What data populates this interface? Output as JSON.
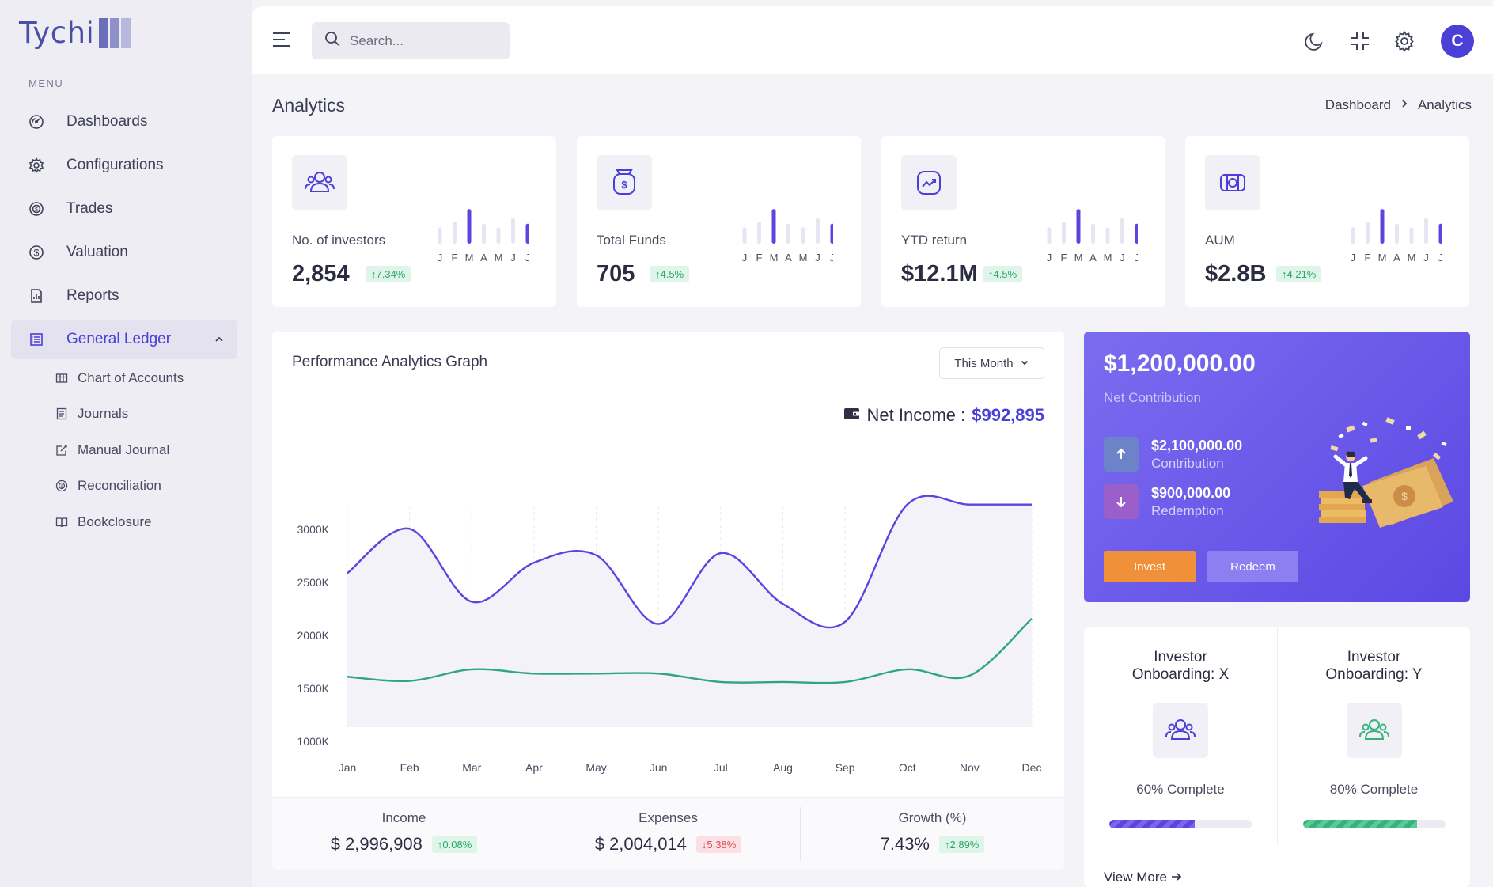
{
  "sidebar": {
    "logo": "Tychi",
    "menu_label": "MENU",
    "items": [
      {
        "label": "Dashboards",
        "icon": "gauge-icon"
      },
      {
        "label": "Configurations",
        "icon": "gear-icon"
      },
      {
        "label": "Trades",
        "icon": "coin-exchange-icon"
      },
      {
        "label": "Valuation",
        "icon": "dollar-circle-icon"
      },
      {
        "label": "Reports",
        "icon": "report-icon"
      },
      {
        "label": "General Ledger",
        "icon": "ledger-icon",
        "active": true,
        "expanded": true
      }
    ],
    "sub_items": [
      {
        "label": "Chart of Accounts",
        "icon": "table-icon"
      },
      {
        "label": "Journals",
        "icon": "journal-icon"
      },
      {
        "label": "Manual Journal",
        "icon": "edit-icon"
      },
      {
        "label": "Reconciliation",
        "icon": "reconcile-icon"
      },
      {
        "label": "Bookclosure",
        "icon": "book-icon"
      }
    ]
  },
  "topbar": {
    "search_placeholder": "Search...",
    "avatar_initial": "C"
  },
  "page": {
    "title": "Analytics",
    "breadcrumb": [
      "Dashboard",
      "Analytics"
    ]
  },
  "stats": [
    {
      "label": "No. of investors",
      "value": "2,854",
      "change": "7.34%",
      "icon": "users-icon"
    },
    {
      "label": "Total Funds",
      "value": "705",
      "change": "4.5%",
      "icon": "money-bag-icon"
    },
    {
      "label": "YTD return",
      "value": "$12.1M",
      "change": "4.5%",
      "icon": "trend-up-icon"
    },
    {
      "label": "AUM",
      "value": "$2.8B",
      "change": "4.21%",
      "icon": "cash-icon"
    }
  ],
  "mini_chart_months": [
    "J",
    "F",
    "M",
    "A",
    "M",
    "J",
    "J"
  ],
  "mini_chart_values": [
    0.45,
    0.6,
    0.95,
    0.55,
    0.45,
    0.7,
    0.55
  ],
  "performance": {
    "title": "Performance Analytics Graph",
    "period": "This Month",
    "net_income_label": "Net Income :",
    "net_income_value": "$992,895",
    "footer": [
      {
        "label": "Income",
        "value": "$ 2,996,908",
        "change": "0.08%",
        "dir": "up"
      },
      {
        "label": "Expenses",
        "value": "$ 2,004,014",
        "change": "5.38%",
        "dir": "down"
      },
      {
        "label": "Growth (%)",
        "value": "7.43%",
        "change": "2.89%",
        "dir": "up"
      }
    ]
  },
  "chart_data": {
    "type": "line",
    "categories": [
      "Jan",
      "Feb",
      "Mar",
      "Apr",
      "May",
      "Jun",
      "Jul",
      "Aug",
      "Sep",
      "Oct",
      "Nov",
      "Dec"
    ],
    "series": [
      {
        "values": [
          2450,
          2870,
          2180,
          2550,
          2620,
          1970,
          2640,
          2160,
          1990,
          3100,
          3100,
          3100
        ],
        "color": "#5b44e0"
      },
      {
        "values": [
          1470,
          1430,
          1540,
          1500,
          1500,
          1500,
          1420,
          1420,
          1420,
          1540,
          1480,
          2020
        ],
        "color": "#2fa585"
      }
    ],
    "y_ticks": [
      "3000K",
      "2500K",
      "2000K",
      "1500K",
      "1000K"
    ],
    "ylim": [
      1000,
      3000
    ]
  },
  "contribution": {
    "amount": "$1,200,000.00",
    "label": "Net Contribution",
    "inflow_amount": "$2,100,000.00",
    "inflow_label": "Contribution",
    "outflow_amount": "$900,000.00",
    "outflow_label": "Redemption",
    "invest_label": "Invest",
    "redeem_label": "Redeem"
  },
  "onboarding": [
    {
      "title_line1": "Investor",
      "title_line2": "Onboarding: X",
      "percent_text": "60% Complete",
      "progress": 0.6,
      "color": "#5b44e0"
    },
    {
      "title_line1": "Investor",
      "title_line2": "Onboarding: Y",
      "percent_text": "80% Complete",
      "progress": 0.8,
      "color": "#35b37a"
    }
  ],
  "view_more": "View More"
}
